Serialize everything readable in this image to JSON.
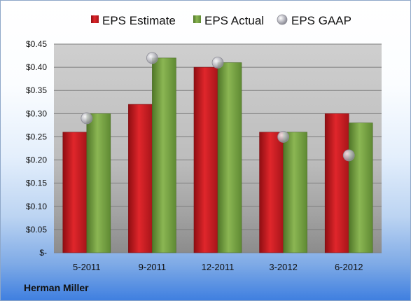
{
  "chart_data": {
    "type": "bar",
    "title": "",
    "xlabel": "",
    "ylabel": "",
    "categories": [
      "5-2011",
      "9-2011",
      "12-2011",
      "3-2012",
      "6-2012"
    ],
    "series": [
      {
        "name": "EPS Estimate",
        "values": [
          0.26,
          0.32,
          0.4,
          0.26,
          0.3
        ],
        "color": "#c4161c"
      },
      {
        "name": "EPS Actual",
        "values": [
          0.3,
          0.42,
          0.41,
          0.26,
          0.28
        ],
        "color": "#6f9b3a"
      },
      {
        "name": "EPS GAAP",
        "values": [
          0.29,
          0.42,
          0.41,
          0.25,
          0.21
        ],
        "color": "#a9a9b4",
        "marker": "circle"
      }
    ],
    "ylim": [
      0,
      0.45
    ],
    "yticks": [
      0,
      0.05,
      0.1,
      0.15,
      0.2,
      0.25,
      0.3,
      0.35,
      0.4,
      0.45
    ],
    "ytick_labels": [
      "$-",
      "$0.05",
      "$0.10",
      "$0.15",
      "$0.20",
      "$0.25",
      "$0.30",
      "$0.35",
      "$0.40",
      "$0.45"
    ],
    "grid": true,
    "legend_position": "top"
  },
  "footer": {
    "company": "Herman Miller"
  }
}
